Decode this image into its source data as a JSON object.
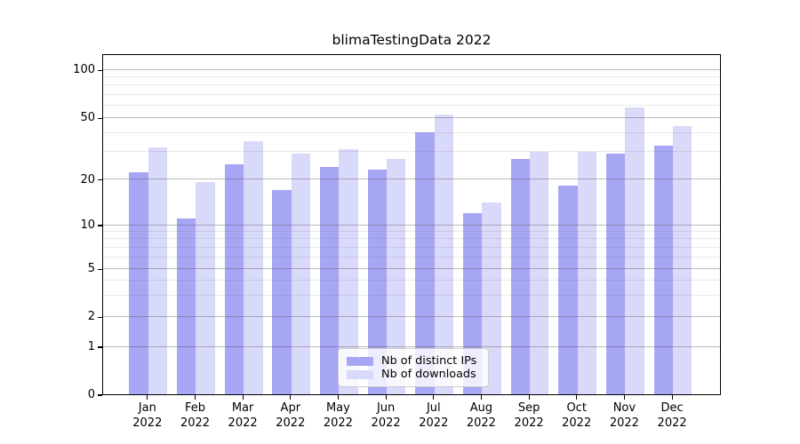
{
  "title": "blimaTestingData 2022",
  "chart_data": {
    "type": "bar",
    "title": "blimaTestingData 2022",
    "categories": [
      "Jan",
      "Feb",
      "Mar",
      "Apr",
      "May",
      "Jun",
      "Jul",
      "Aug",
      "Sep",
      "Oct",
      "Nov",
      "Dec"
    ],
    "category_year": "2022",
    "series": [
      {
        "name": "Nb of distinct IPs",
        "color": "#a6a6f4",
        "values": [
          22,
          11,
          25,
          17,
          24,
          23,
          40,
          12,
          27,
          18,
          29,
          33
        ]
      },
      {
        "name": "Nb of downloads",
        "color": "#d9d9f9",
        "values": [
          32,
          19,
          35,
          29,
          31,
          27,
          52,
          14,
          30,
          30,
          58,
          44
        ]
      }
    ],
    "yscale": "log-like",
    "yticks": [
      0,
      1,
      2,
      5,
      10,
      20,
      50,
      100
    ],
    "ytick_labels": [
      "0",
      "1",
      "2",
      "5",
      "10",
      "20",
      "50",
      "100"
    ],
    "minor_yticks": [
      3,
      4,
      6,
      7,
      8,
      9,
      30,
      40,
      60,
      70,
      80,
      90
    ],
    "ylim": [
      0,
      126
    ],
    "grid": true,
    "legend_position": "lower center",
    "background_color": "#ffffff",
    "axis_color": "#000000"
  },
  "legend": {
    "items": [
      {
        "label": "Nb of distinct IPs"
      },
      {
        "label": "Nb of downloads"
      }
    ]
  }
}
